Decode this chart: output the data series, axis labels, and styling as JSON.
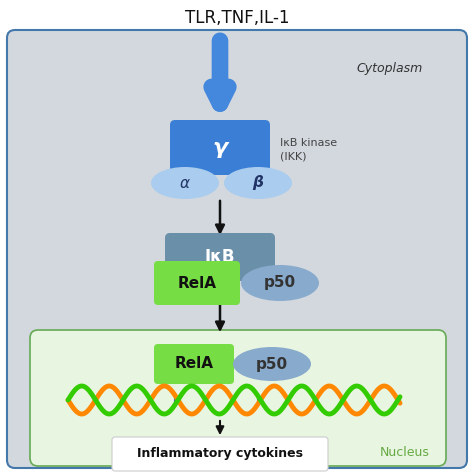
{
  "title": "TLR,TNF,IL-1",
  "cytoplasm_label": "Cytoplasm",
  "nucleus_label": "Nucleus",
  "ikk_label": "IκB kinase\n(IKK)",
  "gamma_label": "γ",
  "alpha_label": "α",
  "beta_label": "β",
  "ikb_label": "IκB",
  "rela_label": "RelA",
  "p50_label": "p50",
  "inflammatory_label": "Inflammatory cytokines",
  "bg_color": "#ffffff",
  "cytoplasm_bg": "#d2d8de",
  "nucleus_bg": "#e8f5e0",
  "gamma_box_color": "#3a7fd5",
  "ikb_box_color": "#6a8fa8",
  "rela_box_color": "#77dd44",
  "p50_ellipse_color": "#88aacc",
  "alpha_ellipse_color": "#aaccee",
  "beta_ellipse_color": "#aaccee",
  "big_arrow_color": "#4488dd",
  "black_arrow_color": "#111111",
  "cytoplasm_edge": "#4477aa",
  "nucleus_edge": "#66aa55",
  "dna_orange": "#ff8800",
  "dna_green": "#33cc00",
  "dna_blue": "#2244bb"
}
